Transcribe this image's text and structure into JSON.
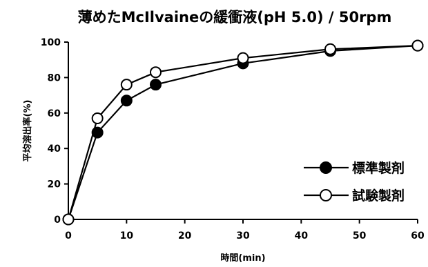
{
  "chart_data": {
    "type": "line",
    "title": "薄めたMcIlvaineの緩衝液(pH 5.0) / 50rpm",
    "xlabel": "時間(min)",
    "ylabel": "平均溶出率(%)",
    "xlim": [
      0,
      60
    ],
    "ylim": [
      0,
      100
    ],
    "x_ticks": [
      0,
      10,
      20,
      30,
      40,
      50,
      60
    ],
    "y_ticks": [
      0,
      20,
      40,
      60,
      80,
      100
    ],
    "grid": false,
    "legend_position": "lower-right",
    "x": [
      0,
      5,
      10,
      15,
      30,
      45,
      60
    ],
    "series": [
      {
        "name": "標準製剤",
        "marker": "filled-circle",
        "color": "#000000",
        "values": [
          0,
          49,
          67,
          76,
          88,
          95,
          98
        ]
      },
      {
        "name": "試験製剤",
        "marker": "open-circle",
        "color": "#000000",
        "values": [
          0,
          57,
          76,
          83,
          91,
          96,
          98
        ]
      }
    ]
  }
}
